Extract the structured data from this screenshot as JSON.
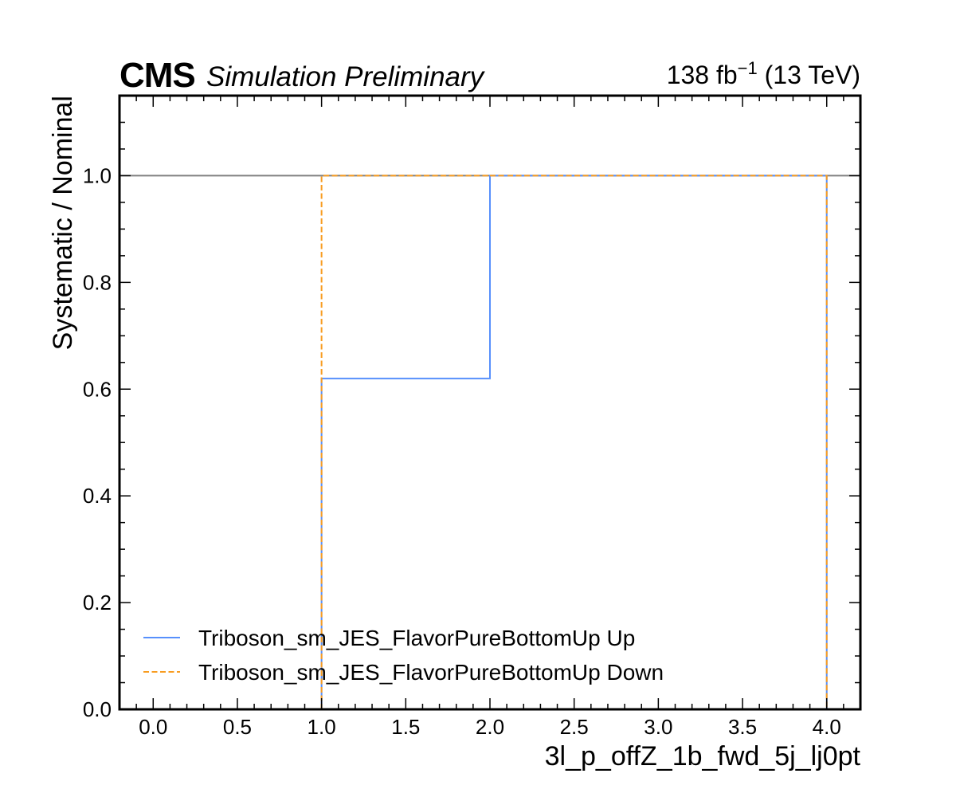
{
  "header": {
    "cms": "CMS",
    "status": "Simulation Preliminary",
    "lumi": "138 fb",
    "lumi_exp": "−1",
    "energy": " (13 TeV)"
  },
  "chart_data": {
    "type": "line",
    "xlabel": "3l_p_offZ_1b_fwd_5j_lj0pt",
    "ylabel": "Systematic / Nominal",
    "xlim": [
      -0.2,
      4.2
    ],
    "ylim": [
      0.0,
      1.15
    ],
    "xticks": [
      "0.0",
      "0.5",
      "1.0",
      "1.5",
      "2.0",
      "2.5",
      "3.0",
      "3.5",
      "4.0"
    ],
    "yticks": [
      "0.0",
      "0.2",
      "0.4",
      "0.6",
      "0.8",
      "1.0"
    ],
    "reference_line": 1.0,
    "series": [
      {
        "name": "Triboson_sm_JES_FlavorPureBottomUp Up",
        "color": "#5790fc",
        "style": "solid",
        "bins": [
          [
            1.0,
            2.0,
            0.62
          ],
          [
            2.0,
            4.0,
            1.0
          ]
        ]
      },
      {
        "name": "Triboson_sm_JES_FlavorPureBottomUp Down",
        "color": "#f89c20",
        "style": "dashed",
        "bins": [
          [
            1.0,
            2.0,
            1.0
          ],
          [
            2.0,
            4.0,
            1.0
          ]
        ]
      }
    ],
    "legend_position": "lower-left",
    "grid": false
  }
}
